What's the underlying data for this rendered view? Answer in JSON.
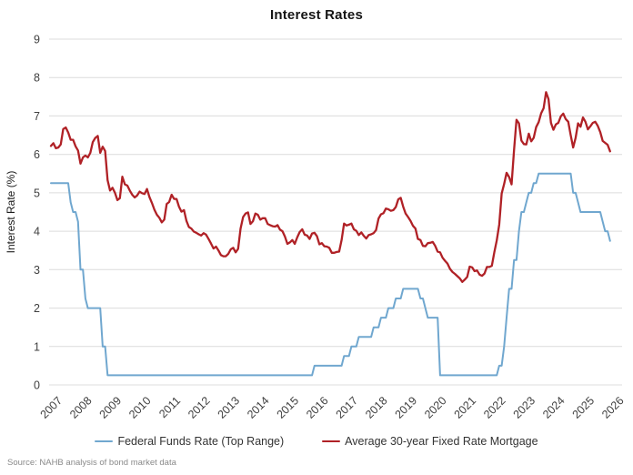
{
  "chart_data": {
    "type": "line",
    "title": "Interest Rates",
    "ylabel": "Interest Rate (%)",
    "ylim": [
      0,
      9
    ],
    "yticks": [
      0,
      1,
      2,
      3,
      4,
      5,
      6,
      7,
      8,
      9
    ],
    "xticks": [
      "2007",
      "2008",
      "2009",
      "2010",
      "2011",
      "2012",
      "2013",
      "2014",
      "2015",
      "2016",
      "2017",
      "2018",
      "2019",
      "2020",
      "2021",
      "2022",
      "2023",
      "2024",
      "2025",
      "2026"
    ],
    "x_start_year": 2007,
    "x_frequency": "monthly",
    "grid": true,
    "legend_position": "bottom",
    "source": "Source: NAHB analysis of bond market data",
    "series": [
      {
        "name": "Federal Funds Rate (Top Range)",
        "color": "#70A7CF",
        "values": [
          5.25,
          5.25,
          5.25,
          5.25,
          5.25,
          5.25,
          5.25,
          5.25,
          4.75,
          4.5,
          4.5,
          4.25,
          3,
          3,
          2.25,
          2,
          2,
          2,
          2,
          2,
          2,
          1,
          1,
          0.25,
          0.25,
          0.25,
          0.25,
          0.25,
          0.25,
          0.25,
          0.25,
          0.25,
          0.25,
          0.25,
          0.25,
          0.25,
          0.25,
          0.25,
          0.25,
          0.25,
          0.25,
          0.25,
          0.25,
          0.25,
          0.25,
          0.25,
          0.25,
          0.25,
          0.25,
          0.25,
          0.25,
          0.25,
          0.25,
          0.25,
          0.25,
          0.25,
          0.25,
          0.25,
          0.25,
          0.25,
          0.25,
          0.25,
          0.25,
          0.25,
          0.25,
          0.25,
          0.25,
          0.25,
          0.25,
          0.25,
          0.25,
          0.25,
          0.25,
          0.25,
          0.25,
          0.25,
          0.25,
          0.25,
          0.25,
          0.25,
          0.25,
          0.25,
          0.25,
          0.25,
          0.25,
          0.25,
          0.25,
          0.25,
          0.25,
          0.25,
          0.25,
          0.25,
          0.25,
          0.25,
          0.25,
          0.25,
          0.25,
          0.25,
          0.25,
          0.25,
          0.25,
          0.25,
          0.25,
          0.25,
          0.25,
          0.25,
          0.25,
          0.5,
          0.5,
          0.5,
          0.5,
          0.5,
          0.5,
          0.5,
          0.5,
          0.5,
          0.5,
          0.5,
          0.5,
          0.75,
          0.75,
          0.75,
          1,
          1,
          1,
          1.25,
          1.25,
          1.25,
          1.25,
          1.25,
          1.25,
          1.5,
          1.5,
          1.5,
          1.75,
          1.75,
          1.75,
          2,
          2,
          2,
          2.25,
          2.25,
          2.25,
          2.5,
          2.5,
          2.5,
          2.5,
          2.5,
          2.5,
          2.5,
          2.25,
          2.25,
          2,
          1.75,
          1.75,
          1.75,
          1.75,
          1.75,
          0.25,
          0.25,
          0.25,
          0.25,
          0.25,
          0.25,
          0.25,
          0.25,
          0.25,
          0.25,
          0.25,
          0.25,
          0.25,
          0.25,
          0.25,
          0.25,
          0.25,
          0.25,
          0.25,
          0.25,
          0.25,
          0.25,
          0.25,
          0.25,
          0.5,
          0.5,
          1,
          1.75,
          2.5,
          2.5,
          3.25,
          3.25,
          4,
          4.5,
          4.5,
          4.75,
          5,
          5,
          5.25,
          5.25,
          5.5,
          5.5,
          5.5,
          5.5,
          5.5,
          5.5,
          5.5,
          5.5,
          5.5,
          5.5,
          5.5,
          5.5,
          5.5,
          5.5,
          5,
          5,
          4.75,
          4.5,
          4.5,
          4.5,
          4.5,
          4.5,
          4.5,
          4.5,
          4.5,
          4.5,
          4.25,
          4,
          4,
          3.75
        ]
      },
      {
        "name": "Average 30-year Fixed Rate Mortgage",
        "color": "#B02126",
        "values": [
          6.22,
          6.29,
          6.16,
          6.18,
          6.26,
          6.66,
          6.7,
          6.57,
          6.38,
          6.38,
          6.21,
          6.1,
          5.76,
          5.92,
          5.97,
          5.92,
          6.04,
          6.32,
          6.43,
          6.48,
          6.04,
          6.2,
          6.09,
          5.33,
          5.06,
          5.13,
          5,
          4.81,
          4.86,
          5.42,
          5.22,
          5.19,
          5.06,
          4.95,
          4.88,
          4.93,
          5.03,
          4.99,
          4.97,
          5.1,
          4.89,
          4.74,
          4.56,
          4.43,
          4.35,
          4.23,
          4.3,
          4.71,
          4.76,
          4.95,
          4.84,
          4.84,
          4.64,
          4.51,
          4.55,
          4.27,
          4.11,
          4.07,
          3.99,
          3.96,
          3.92,
          3.89,
          3.95,
          3.91,
          3.8,
          3.68,
          3.55,
          3.6,
          3.5,
          3.38,
          3.35,
          3.35,
          3.41,
          3.53,
          3.57,
          3.45,
          3.54,
          4.07,
          4.37,
          4.46,
          4.49,
          4.19,
          4.26,
          4.46,
          4.43,
          4.3,
          4.34,
          4.34,
          4.19,
          4.16,
          4.13,
          4.12,
          4.16,
          4.04,
          4,
          3.86,
          3.67,
          3.71,
          3.77,
          3.67,
          3.84,
          3.98,
          4.05,
          3.91,
          3.89,
          3.8,
          3.94,
          3.96,
          3.87,
          3.66,
          3.69,
          3.61,
          3.6,
          3.57,
          3.44,
          3.44,
          3.46,
          3.47,
          3.77,
          4.2,
          4.15,
          4.17,
          4.2,
          4.05,
          4.01,
          3.9,
          3.97,
          3.88,
          3.81,
          3.9,
          3.92,
          3.95,
          4.03,
          4.33,
          4.44,
          4.47,
          4.59,
          4.57,
          4.53,
          4.55,
          4.63,
          4.83,
          4.87,
          4.64,
          4.46,
          4.37,
          4.27,
          4.14,
          4.07,
          3.8,
          3.77,
          3.62,
          3.61,
          3.69,
          3.7,
          3.72,
          3.62,
          3.47,
          3.45,
          3.31,
          3.23,
          3.16,
          3.02,
          2.94,
          2.89,
          2.83,
          2.77,
          2.68,
          2.74,
          2.81,
          3.08,
          3.06,
          2.96,
          2.98,
          2.87,
          2.84,
          2.9,
          3.07,
          3.07,
          3.1,
          3.45,
          3.76,
          4.17,
          4.98,
          5.23,
          5.52,
          5.41,
          5.22,
          6.11,
          6.9,
          6.81,
          6.36,
          6.27,
          6.26,
          6.54,
          6.34,
          6.43,
          6.71,
          6.84,
          7.07,
          7.2,
          7.62,
          7.44,
          6.82,
          6.64,
          6.78,
          6.82,
          6.99,
          7.06,
          6.92,
          6.85,
          6.5,
          6.18,
          6.43,
          6.81,
          6.72,
          6.96,
          6.85,
          6.65,
          6.73,
          6.82,
          6.85,
          6.74,
          6.58,
          6.35,
          6.3,
          6.25,
          6.08
        ]
      }
    ]
  }
}
